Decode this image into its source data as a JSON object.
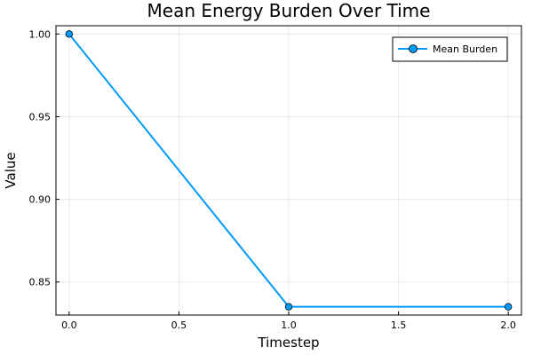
{
  "chart_data": {
    "type": "line",
    "title": "Mean Energy Burden Over Time",
    "xlabel": "Timestep",
    "ylabel": "Value",
    "xlim": [
      -0.06,
      2.06
    ],
    "ylim": [
      0.83,
      1.005
    ],
    "xticks": [
      0.0,
      0.5,
      1.0,
      1.5,
      2.0
    ],
    "xtick_labels": [
      "0.0",
      "0.5",
      "1.0",
      "1.5",
      "2.0"
    ],
    "yticks": [
      0.85,
      0.9,
      0.95,
      1.0
    ],
    "ytick_labels": [
      "0.85",
      "0.90",
      "0.95",
      "1.00"
    ],
    "grid": true,
    "legend_position": "top-right",
    "series": [
      {
        "name": "Mean Burden",
        "color": "#009af9",
        "marker": "circle",
        "x": [
          0,
          1,
          2
        ],
        "y": [
          1.0,
          0.835,
          0.835
        ]
      }
    ]
  }
}
